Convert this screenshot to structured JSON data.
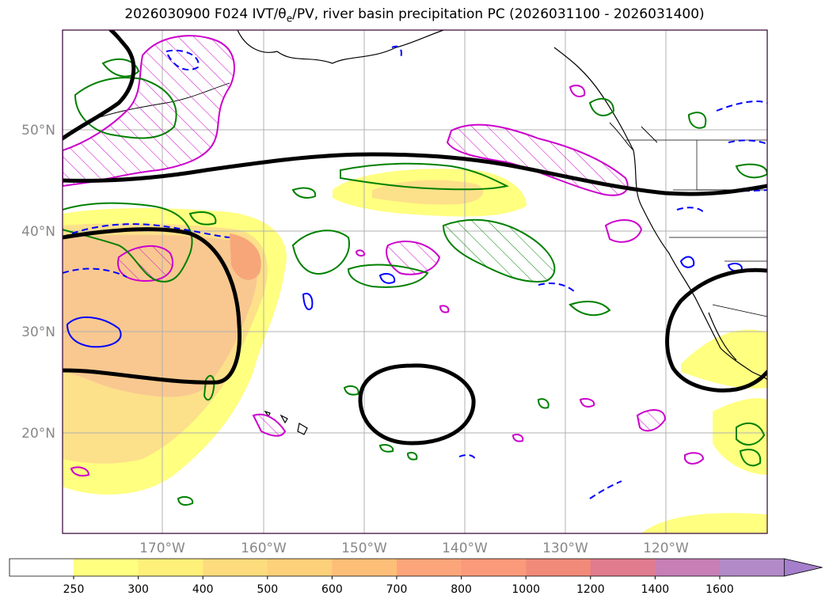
{
  "title": {
    "prefix": "2026030900 F024 IVT/",
    "theta": "θ",
    "theta_sub": "e",
    "suffix": "/PV, river basin precipitation PC (2026031100 - 2026031400)"
  },
  "map": {
    "lat_ticks": [
      "50°N",
      "40°N",
      "30°N",
      "20°N"
    ],
    "lon_ticks": [
      "170°W",
      "160°W",
      "150°W",
      "140°W",
      "130°W",
      "120°W"
    ],
    "colors": {
      "ivt_low": "#ffff80",
      "ivt_mid": "#fde08a",
      "ivt_high": "#f8c070",
      "ivt_peak": "#f7a67a",
      "pv_contour": "#000000",
      "green_contour": "#008000",
      "magenta_contour": "#cc00cc",
      "blue_dashed": "#0000ff",
      "coast": "#000000",
      "grid": "#b0b0b0",
      "frame": "#330033"
    }
  },
  "colorbar": {
    "levels": [
      "250",
      "300",
      "400",
      "500",
      "600",
      "700",
      "800",
      "1000",
      "1200",
      "1400",
      "1600"
    ],
    "colors": [
      "#ffffff",
      "#ffff80",
      "#fff07a",
      "#fddc7e",
      "#fdd07a",
      "#fdbf78",
      "#fca57a",
      "#fa9a7a",
      "#f28a7a",
      "#e07c8e",
      "#c77fb6",
      "#b28ac8",
      "#a57fcc"
    ]
  }
}
